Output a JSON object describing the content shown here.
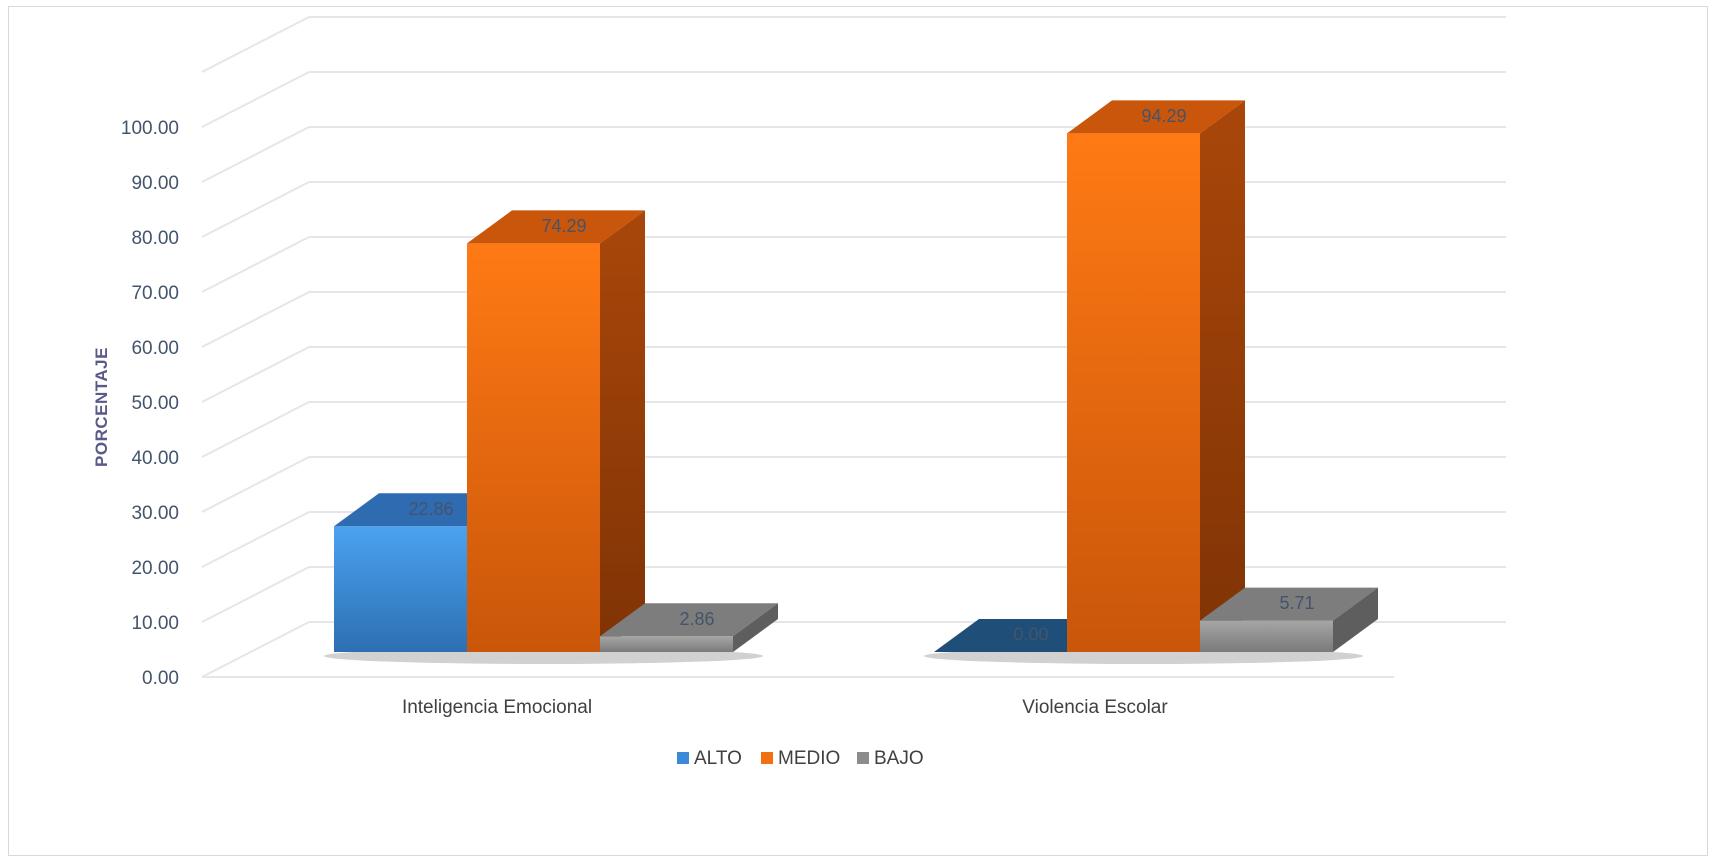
{
  "chart_data": {
    "type": "bar",
    "style": "3d-clustered-column",
    "categories": [
      "Inteligencia Emocional",
      "Violencia Escolar"
    ],
    "series": [
      {
        "name": "ALTO",
        "values": [
          22.86,
          0.0
        ],
        "color": "#3b8ad9"
      },
      {
        "name": "MEDIO",
        "values": [
          74.29,
          94.29
        ],
        "color": "#f27012"
      },
      {
        "name": "BAJO",
        "values": [
          2.86,
          5.71
        ],
        "color": "#8c8c8c"
      }
    ],
    "data_labels": [
      [
        "22.86",
        "0.00"
      ],
      [
        "74.29",
        "94.29"
      ],
      [
        "2.86",
        "5.71"
      ]
    ],
    "ylabel": "PORCENTAJE",
    "ylim": [
      0,
      100
    ],
    "y_ticks": [
      "0.00",
      "10.00",
      "20.00",
      "30.00",
      "40.00",
      "50.00",
      "60.00",
      "70.00",
      "80.00",
      "90.00",
      "100.00"
    ],
    "grid": true,
    "legend_position": "bottom",
    "colors": {
      "alto_dark": "#1f4e79",
      "grid": "#e6e6e6",
      "axis_text": "#44546a"
    }
  }
}
